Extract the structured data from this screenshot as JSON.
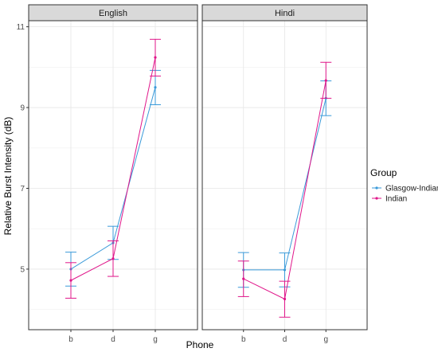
{
  "chart_data": {
    "type": "line",
    "xlabel": "Phone",
    "ylabel": "Relative Burst Intensity (dB)",
    "categories": [
      "b",
      "d",
      "g"
    ],
    "y_ticks": [
      5,
      7,
      9,
      11
    ],
    "ylim": [
      3.5,
      11.15
    ],
    "grid": true,
    "legend": {
      "title": "Group",
      "position": "right",
      "entries": [
        "Glasgow-Indian",
        "Indian"
      ]
    },
    "colors": {
      "Glasgow-Indian": "#3a9ad9",
      "Indian": "#e0168a"
    },
    "panels": [
      {
        "title": "English",
        "series": [
          {
            "name": "Glasgow-Indian",
            "values": [
              5.0,
              5.65,
              9.5
            ],
            "lower": [
              4.58,
              5.24,
              9.07
            ],
            "upper": [
              5.42,
              6.06,
              9.92
            ]
          },
          {
            "name": "Indian",
            "values": [
              4.72,
              5.26,
              10.24
            ],
            "lower": [
              4.28,
              4.82,
              9.78
            ],
            "upper": [
              5.16,
              5.7,
              10.69
            ]
          }
        ]
      },
      {
        "title": "Hindi",
        "series": [
          {
            "name": "Glasgow-Indian",
            "values": [
              4.98,
              4.98,
              9.23
            ],
            "lower": [
              4.55,
              4.56,
              8.8
            ],
            "upper": [
              5.41,
              5.4,
              9.66
            ]
          },
          {
            "name": "Indian",
            "values": [
              4.76,
              4.26,
              9.67
            ],
            "lower": [
              4.32,
              3.81,
              9.23
            ],
            "upper": [
              5.2,
              4.7,
              10.12
            ]
          }
        ]
      }
    ]
  }
}
